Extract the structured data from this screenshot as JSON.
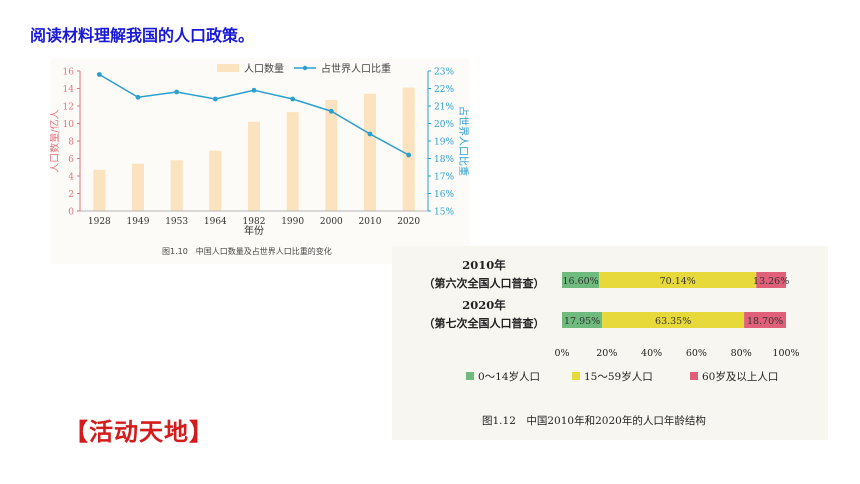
{
  "instruction": "阅读材料理解我国的人口政策。",
  "activity_title": "【活动天地】",
  "chart_data": [
    {
      "type": "bar-line",
      "caption": "图1.10　中国人口数量及占世界人口比重的变化",
      "categories": [
        "1928",
        "1949",
        "1953",
        "1964",
        "1982",
        "1990",
        "2000",
        "2010",
        "2020"
      ],
      "xlabel": "年份",
      "series": [
        {
          "name": "人口数量",
          "type": "bar",
          "axis": "left",
          "values": [
            4.7,
            5.4,
            5.8,
            6.9,
            10.2,
            11.3,
            12.7,
            13.4,
            14.1
          ]
        },
        {
          "name": "占世界人口比重",
          "type": "line",
          "axis": "right",
          "values": [
            22.8,
            21.5,
            21.8,
            21.4,
            21.9,
            21.4,
            20.7,
            19.4,
            18.2
          ]
        }
      ],
      "ylabel_left": "人口数量/亿人",
      "ylim_left": [
        0,
        16
      ],
      "yticks_left": [
        "0",
        "2",
        "4",
        "6",
        "8",
        "10",
        "12",
        "14",
        "16"
      ],
      "ylabel_right": "占世界人口比重",
      "ylim_right": [
        15,
        23
      ],
      "yticks_right": [
        "15%",
        "16%",
        "17%",
        "18%",
        "19%",
        "20%",
        "21%",
        "22%",
        "23%"
      ],
      "colors": {
        "bar": "#fbe3c0",
        "line": "#2a9fd0",
        "left_axis": "#e4737d",
        "right_axis": "#2a9fd0"
      }
    },
    {
      "type": "stacked-bar-horizontal",
      "caption": "图1.12　中国2010年和2020年的人口年龄结构",
      "rows": [
        {
          "label_line1": "2010年",
          "label_line2": "（第六次全国人口普查）",
          "values": [
            16.6,
            70.14,
            13.26
          ],
          "labels": [
            "16.60%",
            "70.14%",
            "13.26%"
          ]
        },
        {
          "label_line1": "2020年",
          "label_line2": "（第七次全国人口普查）",
          "values": [
            17.95,
            63.35,
            18.7
          ],
          "labels": [
            "17.95%",
            "63.35%",
            "18.70%"
          ]
        }
      ],
      "series": [
        "0～14岁人口",
        "15～59岁人口",
        "60岁及以上人口"
      ],
      "xticks": [
        "0%",
        "20%",
        "40%",
        "60%",
        "80%",
        "100%"
      ],
      "xlim": [
        0,
        100
      ],
      "colors": [
        "#6fba7d",
        "#e8d93a",
        "#e0607a"
      ]
    }
  ]
}
